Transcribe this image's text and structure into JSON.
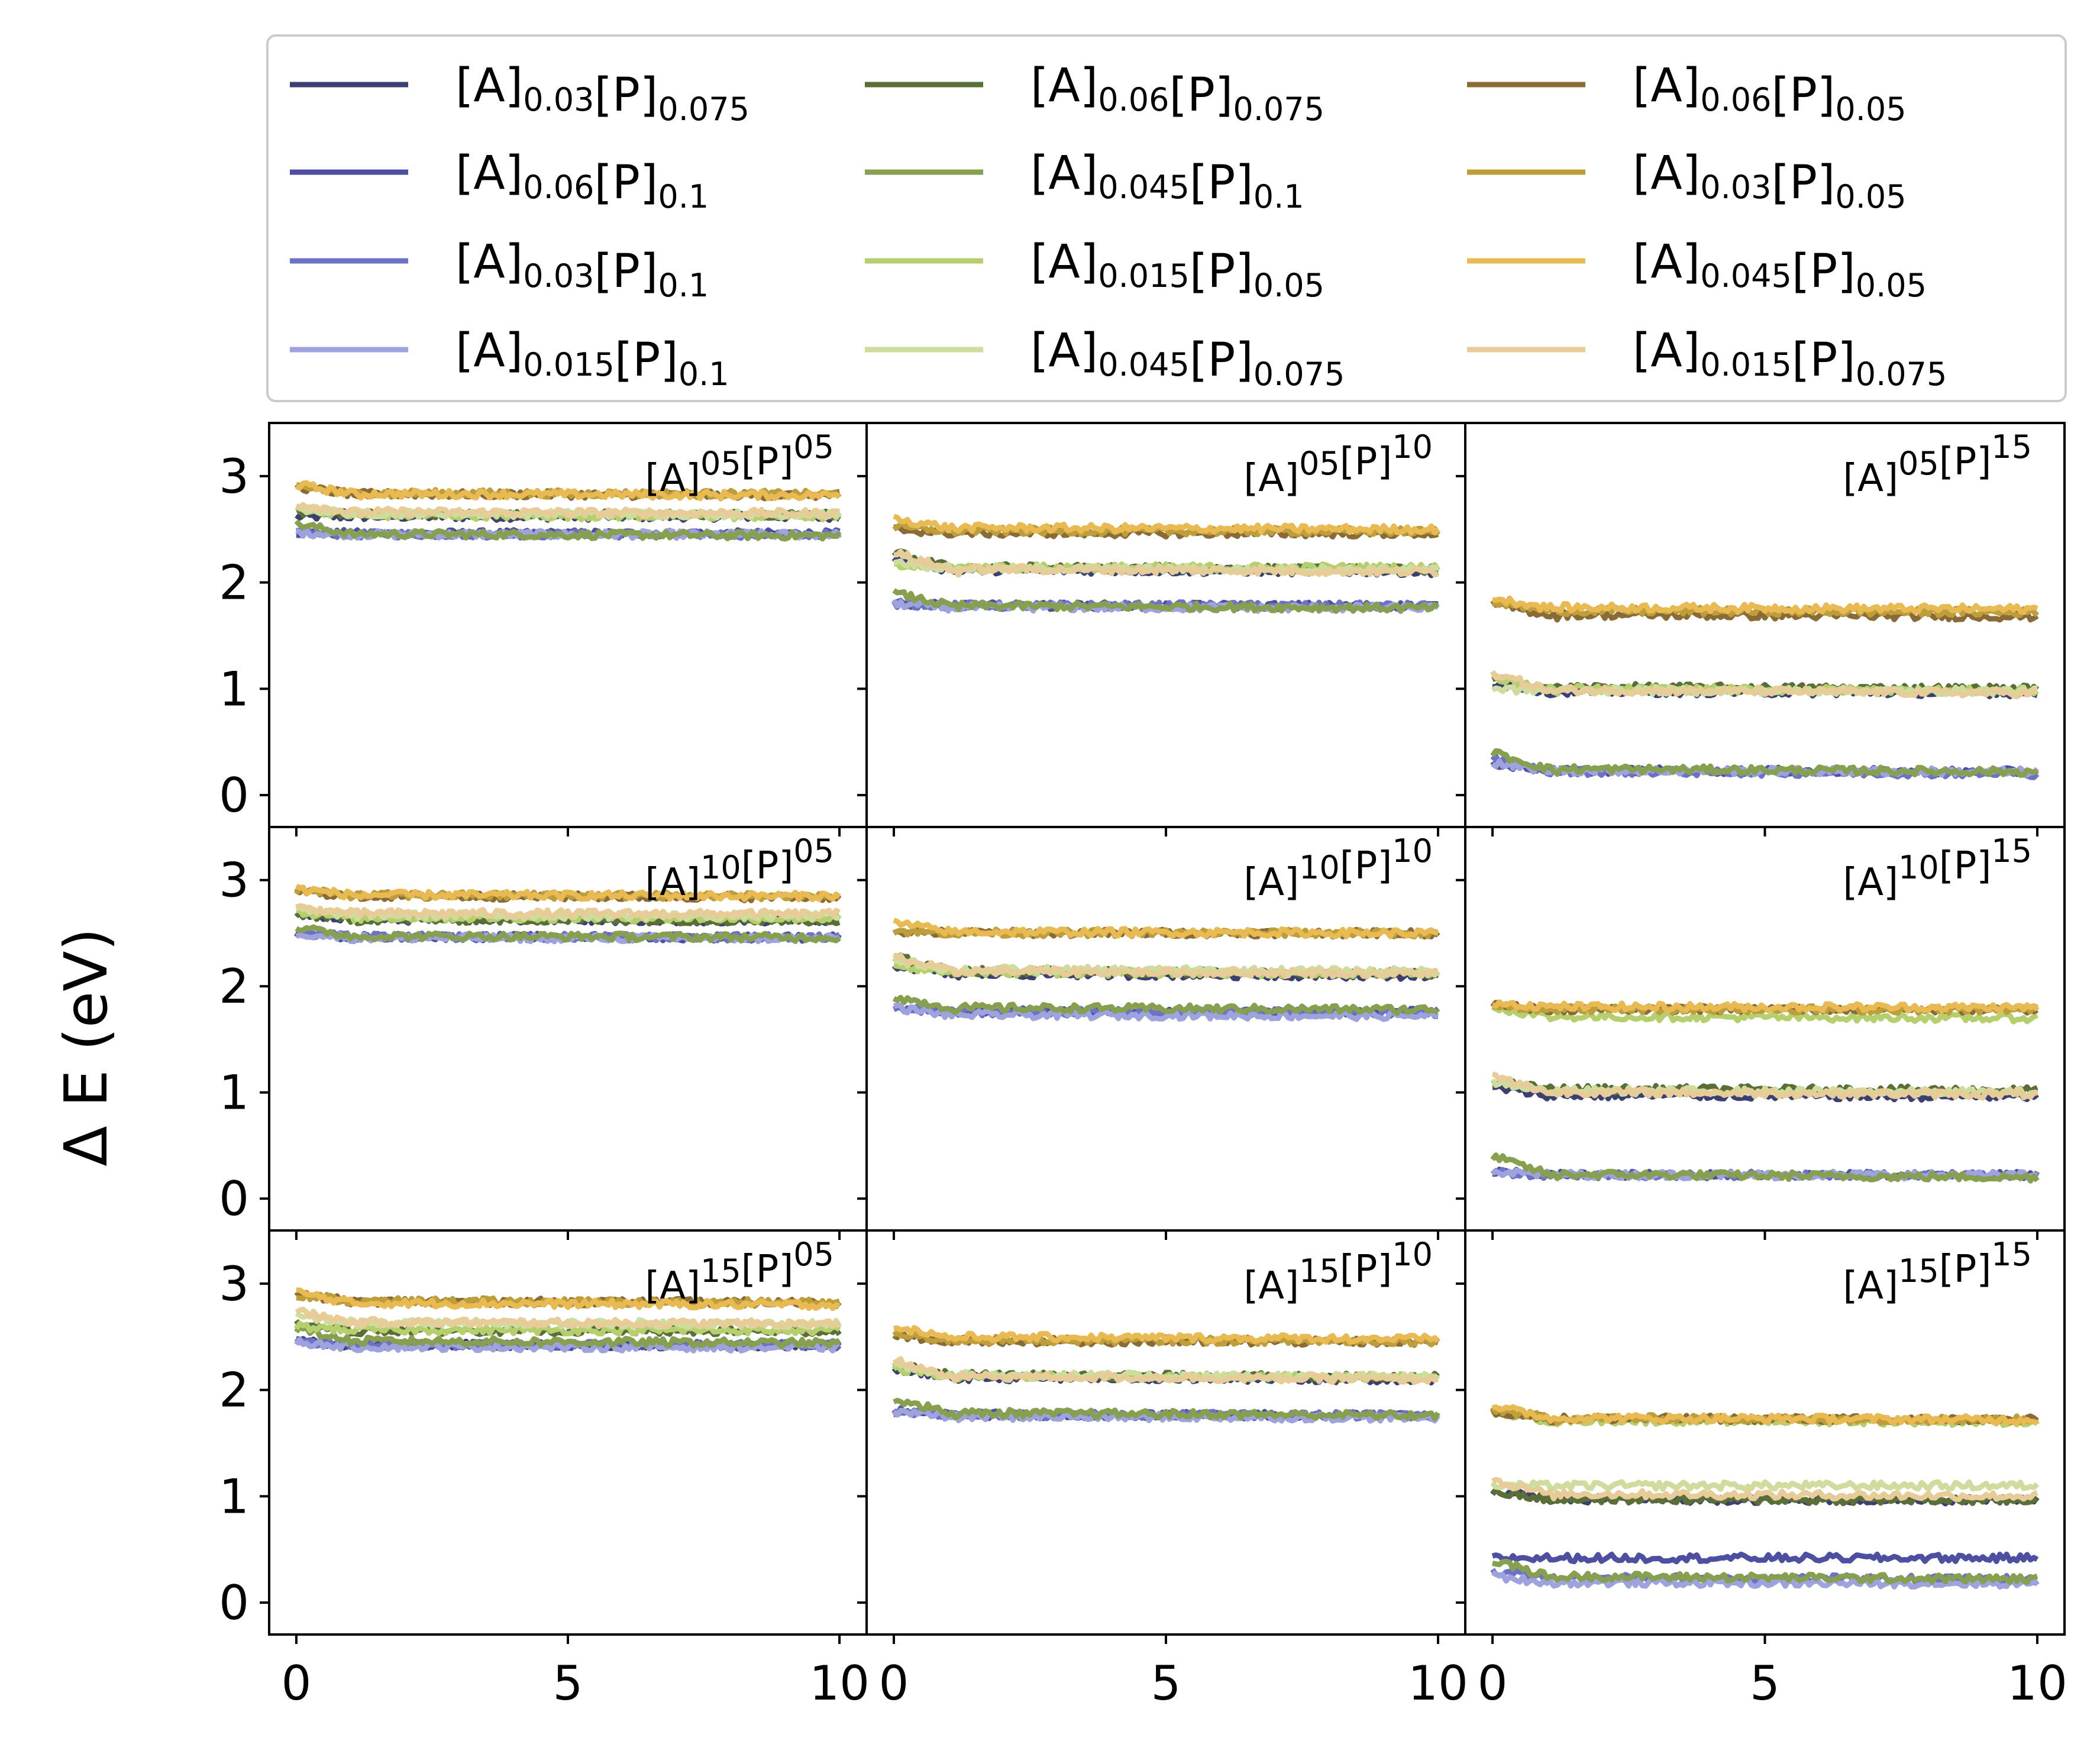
{
  "chart_data": {
    "type": "line",
    "ylabel": "Δ E (eV)",
    "xlabel": "",
    "xlim": [
      -0.5,
      10.5
    ],
    "ylim": [
      -0.3,
      3.5
    ],
    "xticks": [
      0,
      5,
      10
    ],
    "xtick_labels": [
      "0",
      "5",
      "10"
    ],
    "yticks": [
      0,
      1,
      2,
      3
    ],
    "ytick_labels": [
      "0",
      "1",
      "2",
      "3"
    ],
    "grid": false,
    "legend": {
      "placement": "top",
      "columns": 3,
      "entries": [
        {
          "series": "s1",
          "A": "0.03",
          "P": "0.075"
        },
        {
          "series": "s2",
          "A": "0.06",
          "P": "0.1"
        },
        {
          "series": "s3",
          "A": "0.03",
          "P": "0.1"
        },
        {
          "series": "s4",
          "A": "0.015",
          "P": "0.1"
        },
        {
          "series": "s5",
          "A": "0.06",
          "P": "0.075"
        },
        {
          "series": "s6",
          "A": "0.045",
          "P": "0.1"
        },
        {
          "series": "s7",
          "A": "0.015",
          "P": "0.05"
        },
        {
          "series": "s8",
          "A": "0.045",
          "P": "0.075"
        },
        {
          "series": "s9",
          "A": "0.06",
          "P": "0.05"
        },
        {
          "series": "s10",
          "A": "0.03",
          "P": "0.05"
        },
        {
          "series": "s11",
          "A": "0.045",
          "P": "0.05"
        },
        {
          "series": "s12",
          "A": "0.015",
          "P": "0.075"
        }
      ]
    },
    "series": [
      {
        "id": "s1",
        "color": "#3b3f72",
        "group": "blue"
      },
      {
        "id": "s2",
        "color": "#4d50a0",
        "group": "blue"
      },
      {
        "id": "s3",
        "color": "#6d72c8",
        "group": "blue"
      },
      {
        "id": "s4",
        "color": "#9ea3de",
        "group": "blue"
      },
      {
        "id": "s5",
        "color": "#5a6e38",
        "group": "green"
      },
      {
        "id": "s6",
        "color": "#86a04f",
        "group": "green"
      },
      {
        "id": "s7",
        "color": "#b5cf6c",
        "group": "green"
      },
      {
        "id": "s8",
        "color": "#cedc9e",
        "group": "green"
      },
      {
        "id": "s9",
        "color": "#8b6b35",
        "group": "gold"
      },
      {
        "id": "s10",
        "color": "#bd9e3a",
        "group": "gold"
      },
      {
        "id": "s11",
        "color": "#e8ba51",
        "group": "gold"
      },
      {
        "id": "s12",
        "color": "#e8cc98",
        "group": "gold"
      }
    ],
    "panels": [
      {
        "A": "05",
        "P": "05",
        "values": {
          "s1": [
            2.62,
            2.62
          ],
          "s2": [
            2.47,
            2.46
          ],
          "s3": [
            2.47,
            2.45
          ],
          "s4": [
            2.47,
            2.45
          ],
          "s5": [
            2.66,
            2.64
          ],
          "s6": [
            2.55,
            2.44
          ],
          "s7": [
            2.7,
            2.62
          ],
          "s8": [
            2.7,
            2.64
          ],
          "s9": [
            2.9,
            2.82
          ],
          "s10": [
            2.9,
            2.83
          ],
          "s11": [
            2.92,
            2.82
          ],
          "s12": [
            2.74,
            2.65
          ]
        }
      },
      {
        "A": "05",
        "P": "10",
        "values": {
          "s1": [
            2.22,
            2.1
          ],
          "s2": [
            1.8,
            1.78
          ],
          "s3": [
            1.8,
            1.78
          ],
          "s4": [
            1.8,
            1.76
          ],
          "s5": [
            2.28,
            2.12
          ],
          "s6": [
            1.9,
            1.76
          ],
          "s7": [
            2.15,
            2.14
          ],
          "s8": [
            2.2,
            2.12
          ],
          "s9": [
            2.5,
            2.46
          ],
          "s10": [
            2.52,
            2.48
          ],
          "s11": [
            2.6,
            2.5
          ],
          "s12": [
            2.28,
            2.1
          ]
        }
      },
      {
        "A": "05",
        "P": "15",
        "values": {
          "s1": [
            1.05,
            0.96
          ],
          "s2": [
            0.3,
            0.22
          ],
          "s3": [
            0.35,
            0.2
          ],
          "s4": [
            0.3,
            0.22
          ],
          "s5": [
            1.1,
            1.0
          ],
          "s6": [
            0.4,
            0.22
          ],
          "s7": [
            1.1,
            0.98
          ],
          "s8": [
            1.0,
            0.98
          ],
          "s9": [
            1.8,
            1.68
          ],
          "s10": [
            1.82,
            1.72
          ],
          "s11": [
            1.85,
            1.75
          ],
          "s12": [
            1.15,
            0.96
          ]
        }
      },
      {
        "A": "10",
        "P": "05",
        "values": {
          "s1": [
            2.68,
            2.62
          ],
          "s2": [
            2.5,
            2.46
          ],
          "s3": [
            2.5,
            2.46
          ],
          "s4": [
            2.5,
            2.45
          ],
          "s5": [
            2.68,
            2.62
          ],
          "s6": [
            2.55,
            2.46
          ],
          "s7": [
            2.7,
            2.64
          ],
          "s8": [
            2.72,
            2.66
          ],
          "s9": [
            2.9,
            2.84
          ],
          "s10": [
            2.9,
            2.85
          ],
          "s11": [
            2.92,
            2.85
          ],
          "s12": [
            2.74,
            2.68
          ]
        }
      },
      {
        "A": "10",
        "P": "10",
        "values": {
          "s1": [
            2.2,
            2.1
          ],
          "s2": [
            1.8,
            1.76
          ],
          "s3": [
            1.8,
            1.75
          ],
          "s4": [
            1.8,
            1.72
          ],
          "s5": [
            2.28,
            2.12
          ],
          "s6": [
            1.9,
            1.78
          ],
          "s7": [
            2.2,
            2.12
          ],
          "s8": [
            2.25,
            2.14
          ],
          "s9": [
            2.52,
            2.5
          ],
          "s10": [
            2.52,
            2.5
          ],
          "s11": [
            2.6,
            2.5
          ],
          "s12": [
            2.28,
            2.12
          ]
        }
      },
      {
        "A": "10",
        "P": "15",
        "values": {
          "s1": [
            1.05,
            0.96
          ],
          "s2": [
            0.25,
            0.22
          ],
          "s3": [
            0.25,
            0.22
          ],
          "s4": [
            0.25,
            0.22
          ],
          "s5": [
            1.1,
            1.02
          ],
          "s6": [
            0.4,
            0.2
          ],
          "s7": [
            1.8,
            1.7
          ],
          "s8": [
            1.1,
            1.0
          ],
          "s9": [
            1.82,
            1.78
          ],
          "s10": [
            1.82,
            1.78
          ],
          "s11": [
            1.85,
            1.8
          ],
          "s12": [
            1.15,
            0.98
          ]
        }
      },
      {
        "A": "15",
        "P": "05",
        "values": {
          "s1": [
            2.45,
            2.42
          ],
          "s2": [
            2.45,
            2.42
          ],
          "s3": [
            2.45,
            2.42
          ],
          "s4": [
            2.45,
            2.4
          ],
          "s5": [
            2.62,
            2.55
          ],
          "s6": [
            2.58,
            2.44
          ],
          "s7": [
            2.6,
            2.56
          ],
          "s8": [
            2.7,
            2.62
          ],
          "s9": [
            2.9,
            2.82
          ],
          "s10": [
            2.9,
            2.82
          ],
          "s11": [
            2.92,
            2.8
          ],
          "s12": [
            2.74,
            2.62
          ]
        }
      },
      {
        "A": "15",
        "P": "10",
        "values": {
          "s1": [
            2.2,
            2.1
          ],
          "s2": [
            1.8,
            1.76
          ],
          "s3": [
            1.8,
            1.76
          ],
          "s4": [
            1.8,
            1.74
          ],
          "s5": [
            2.25,
            2.12
          ],
          "s6": [
            1.92,
            1.76
          ],
          "s7": [
            2.2,
            2.12
          ],
          "s8": [
            2.25,
            2.12
          ],
          "s9": [
            2.52,
            2.45
          ],
          "s10": [
            2.52,
            2.46
          ],
          "s11": [
            2.6,
            2.48
          ],
          "s12": [
            2.28,
            2.1
          ]
        }
      },
      {
        "A": "15",
        "P": "15",
        "values": {
          "s1": [
            1.05,
            0.96
          ],
          "s2": [
            0.42,
            0.42
          ],
          "s3": [
            0.3,
            0.22
          ],
          "s4": [
            0.25,
            0.18
          ],
          "s5": [
            1.05,
            0.96
          ],
          "s6": [
            0.4,
            0.22
          ],
          "s7": [
            1.8,
            1.7
          ],
          "s8": [
            1.1,
            1.1
          ],
          "s9": [
            1.8,
            1.72
          ],
          "s10": [
            1.82,
            1.72
          ],
          "s11": [
            1.85,
            1.72
          ],
          "s12": [
            1.15,
            1.0
          ]
        }
      }
    ]
  }
}
